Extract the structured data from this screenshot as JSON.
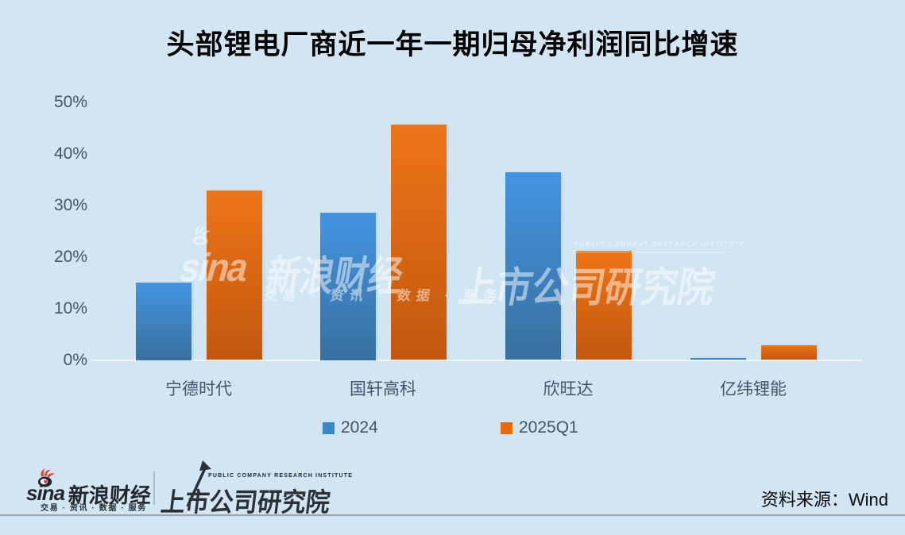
{
  "title": "头部锂电厂商近一年一期归母净利润同比增速",
  "chart_data": {
    "type": "bar",
    "categories": [
      "宁德时代",
      "国轩高科",
      "欣旺达",
      "亿纬锂能"
    ],
    "series": [
      {
        "name": "2024",
        "values": [
          15,
          28.5,
          36.4,
          0.4
        ]
      },
      {
        "name": "2025Q1",
        "values": [
          32.9,
          45.6,
          21.2,
          2.9
        ]
      }
    ],
    "unit": "%",
    "ylim": [
      0,
      50
    ],
    "yticks": [
      "0%",
      "10%",
      "20%",
      "30%",
      "40%",
      "50%"
    ],
    "grid": false,
    "legend_position": "bottom",
    "xlabel": "",
    "ylabel": ""
  },
  "watermark": {
    "sina_text": "sina",
    "brand": "新浪财经",
    "tagline": "交易 · 资讯 · 数据 · 服务",
    "institute": "上市公司研究院",
    "institute_en": "PUBLIC COMPANY RESEARCH INSTITUTE"
  },
  "footer": {
    "sina_text": "sina",
    "brand": "新浪财经",
    "tagline": "交易 · 资讯 · 数据 · 服务",
    "institute": "上市公司研究院",
    "institute_en": "PUBLIC COMPANY RESEARCH INSTITUTE",
    "source": "资料来源：Wind"
  },
  "colors": {
    "background": "#D2E5F2",
    "bar_blue_top": "#4494E2",
    "bar_blue_bottom": "#38709F",
    "bar_orange_top": "#EE7418",
    "bar_orange_bottom": "#C2580E",
    "legend_blue": "#3A86C8",
    "legend_orange": "#E56B0C",
    "axis_text": "#44546A",
    "title_text": "#000000",
    "sina_red": "#E33C30",
    "logo_dark": "#23272D",
    "divider_gray": "#9BA3AB"
  }
}
